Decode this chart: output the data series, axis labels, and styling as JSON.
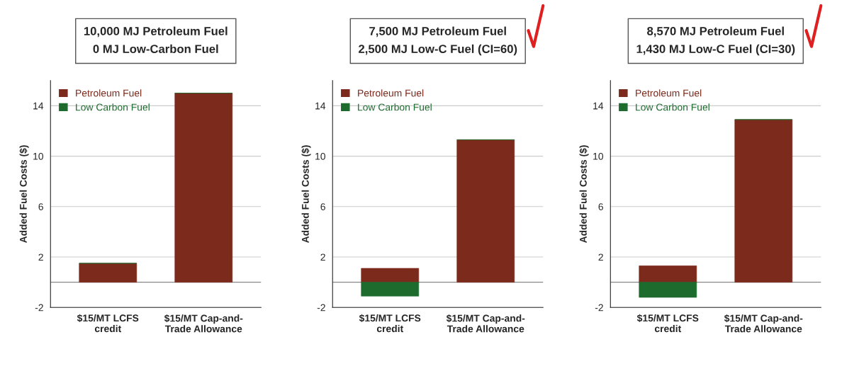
{
  "chart_data": [
    {
      "type": "bar",
      "title": "10,000 MJ Petroleum Fuel\n0 MJ Low-Carbon Fuel",
      "ylabel": "Added Fuel Costs ($)",
      "categories": [
        "$15/MT LCFS\ncredit",
        "$15/MT Cap-and-\nTrade Allowance"
      ],
      "stacked": true,
      "series": [
        {
          "name": "Petroleum Fuel",
          "color": "#7b2a1c",
          "values": [
            1.5,
            15
          ]
        },
        {
          "name": "Low Carbon Fuel",
          "color": "#1e6b2e",
          "values": [
            0,
            0
          ]
        }
      ],
      "ylim": [
        -2,
        16
      ],
      "yticks": [
        -2,
        2,
        6,
        10,
        14
      ],
      "grid": "y",
      "legend": "top left"
    },
    {
      "type": "bar",
      "title": "7,500 MJ Petroleum Fuel\n2,500 MJ Low-C Fuel (CI=60)",
      "ylabel": "Added Fuel Costs ($)",
      "categories": [
        "$15/MT LCFS\ncredit",
        "$15/MT Cap-and-\nTrade Allowance"
      ],
      "stacked": true,
      "series": [
        {
          "name": "Petroleum Fuel",
          "color": "#7b2a1c",
          "values": [
            1.1,
            11.3
          ]
        },
        {
          "name": "Low Carbon Fuel",
          "color": "#1e6b2e",
          "values": [
            -1.1,
            0
          ]
        }
      ],
      "ylim": [
        -2,
        16
      ],
      "yticks": [
        -2,
        2,
        6,
        10,
        14
      ],
      "grid": "y",
      "legend": "top left"
    },
    {
      "type": "bar",
      "title": "8,570 MJ Petroleum Fuel\n1,430 MJ Low-C Fuel (CI=30)",
      "ylabel": "Added Fuel Costs ($)",
      "categories": [
        "$15/MT LCFS\ncredit",
        "$15/MT Cap-and-\nTrade Allowance"
      ],
      "stacked": true,
      "series": [
        {
          "name": "Petroleum Fuel",
          "color": "#7b2a1c",
          "values": [
            1.3,
            12.9
          ]
        },
        {
          "name": "Low Carbon Fuel",
          "color": "#1e6b2e",
          "values": [
            -1.2,
            0
          ]
        }
      ],
      "ylim": [
        -2,
        16
      ],
      "yticks": [
        -2,
        2,
        6,
        10,
        14
      ],
      "grid": "y",
      "legend": "top left"
    }
  ]
}
